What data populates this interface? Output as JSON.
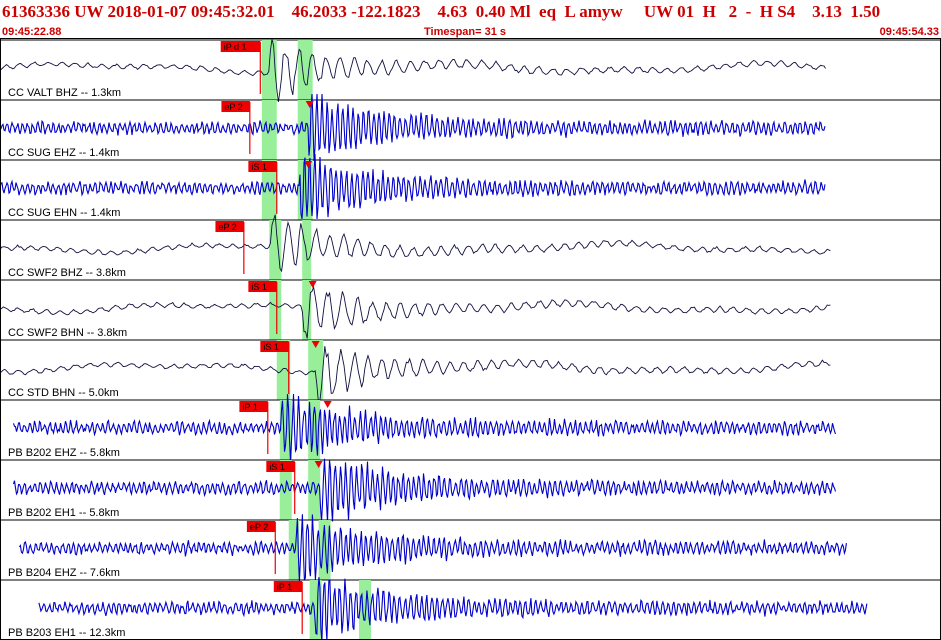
{
  "header": {
    "title": "61363336 UW 2018-01-07 09:45:32.01    46.2033 -122.1823    4.63  0.40 Ml  eq  L amyw     UW 01  H   2  -  H S4    3.13  1.50",
    "start_time": "09:45:22.88",
    "timespan": "Timespan=  31 s",
    "end_time": "09:45:54.33"
  },
  "chart_data": {
    "type": "line",
    "title": "",
    "time_range_s": [
      0,
      31.45
    ],
    "colors": {
      "black_trace": "#101040",
      "blue_trace": "#0000cc",
      "pick": "#ee0000",
      "window": "#99ee99",
      "label": "#000000"
    },
    "traces": [
      {
        "label": "CC VALT BHZ -- 1.3km",
        "color": "black",
        "pick": "iP d 1",
        "pick_time_s": 8.7,
        "pick_type": "P",
        "windows_s": [
          [
            8.75,
            9.25
          ],
          [
            9.95,
            10.45
          ]
        ],
        "marker_time_s": null,
        "onset_s": 9.0,
        "start_s": 0.0,
        "end_s": 27.6,
        "amp": 0.4
      },
      {
        "label": "CC SUG EHZ -- 1.4km",
        "color": "blue",
        "pick": "eP 2",
        "pick_time_s": 8.35,
        "pick_type": "P",
        "windows_s": [
          [
            8.75,
            9.25
          ],
          [
            9.95,
            10.45
          ]
        ],
        "marker_time_s": 10.35,
        "onset_s": 10.3,
        "start_s": 0.0,
        "end_s": 27.6,
        "amp": 0.4
      },
      {
        "label": "CC SUG EHN -- 1.4km",
        "color": "blue",
        "pick": "iS 1",
        "pick_time_s": 9.25,
        "pick_type": "S",
        "windows_s": [
          [
            8.75,
            9.25
          ],
          [
            9.95,
            10.45
          ]
        ],
        "marker_time_s": 10.3,
        "onset_s": 10.0,
        "start_s": 0.0,
        "end_s": 27.6,
        "amp": 0.4
      },
      {
        "label": "CC SWF2 BHZ -- 3.8km",
        "color": "black",
        "pick": "eP 2",
        "pick_time_s": 8.15,
        "pick_type": "P",
        "windows_s": [
          [
            9.0,
            9.4
          ],
          [
            10.1,
            10.4
          ]
        ],
        "marker_time_s": null,
        "onset_s": 9.0,
        "start_s": 0.0,
        "end_s": 27.8,
        "amp": 0.4
      },
      {
        "label": "CC SWF2 BHN -- 3.8km",
        "color": "black",
        "pick": "iS 1",
        "pick_time_s": 9.25,
        "pick_type": "S",
        "windows_s": [
          [
            9.0,
            9.4
          ],
          [
            10.1,
            10.4
          ]
        ],
        "marker_time_s": 10.45,
        "onset_s": 10.1,
        "start_s": 0.0,
        "end_s": 27.8,
        "amp": 0.4
      },
      {
        "label": "CC STD BHN -- 5.0km",
        "color": "black",
        "pick": "iS 1",
        "pick_time_s": 9.65,
        "pick_type": "S",
        "windows_s": [
          [
            9.25,
            9.7
          ],
          [
            10.3,
            10.8
          ]
        ],
        "marker_time_s": 10.55,
        "onset_s": 10.5,
        "start_s": 0.0,
        "end_s": 27.8,
        "amp": 0.4
      },
      {
        "label": "PB B202 EHZ -- 5.8km",
        "color": "blue",
        "pick": "iP 1",
        "pick_time_s": 8.95,
        "pick_type": "P",
        "windows_s": [
          [
            9.35,
            9.75
          ],
          [
            10.3,
            10.7
          ]
        ],
        "marker_time_s": 10.95,
        "onset_s": 9.4,
        "start_s": 0.45,
        "end_s": 27.95,
        "amp": 0.4
      },
      {
        "label": "PB B202 EH1 -- 5.8km",
        "color": "blue",
        "pick": "iS 1",
        "pick_time_s": 9.85,
        "pick_type": "S",
        "windows_s": [
          [
            9.35,
            9.75
          ],
          [
            10.3,
            10.7
          ]
        ],
        "marker_time_s": 10.65,
        "onset_s": 10.7,
        "start_s": 0.45,
        "end_s": 27.95,
        "amp": 0.4
      },
      {
        "label": "PB B204 EHZ -- 7.6km",
        "color": "blue",
        "pick": "eP 2",
        "pick_time_s": 9.2,
        "pick_type": "P",
        "windows_s": [
          [
            9.65,
            10.0
          ],
          [
            10.65,
            11.05
          ]
        ],
        "marker_time_s": null,
        "onset_s": 9.9,
        "start_s": 0.65,
        "end_s": 28.3,
        "amp": 0.4
      },
      {
        "label": "PB B203 EH1 -- 12.3km",
        "color": "blue",
        "pick": "iP 1",
        "pick_time_s": 10.1,
        "pick_type": "P",
        "windows_s": [
          [
            10.35,
            10.75
          ],
          [
            12.0,
            12.4
          ]
        ],
        "marker_time_s": null,
        "onset_s": 10.5,
        "start_s": 1.3,
        "end_s": 29.0,
        "amp": 0.4
      }
    ]
  }
}
